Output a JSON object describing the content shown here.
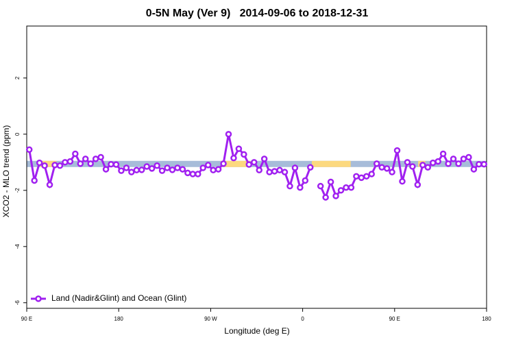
{
  "chart_data": {
    "type": "line",
    "title": "0-5N May (Ver 9)   2014-09-06 to 2018-12-31",
    "x_label": "Longitude (deg E)",
    "y_label": "XCO2 - MLO trend (ppm)",
    "xlim": [
      90,
      540
    ],
    "ylim": [
      -6.2,
      3.85
    ],
    "xticks": [
      {
        "value": 90,
        "label": "90 E"
      },
      180,
      {
        "value": 270,
        "label": "90 W"
      },
      {
        "value": 360,
        "label": "0"
      },
      {
        "value": 450,
        "label": "90 E"
      },
      {
        "value": 540,
        "label": "180"
      }
    ],
    "yticks": [
      -6,
      -4,
      -2,
      0,
      2
    ],
    "legend": "bottom-left",
    "band": {
      "range": [
        -1.17,
        -0.95
      ],
      "color": "#a7bcd9",
      "highlight_color": "#fcd97f",
      "highlights": [
        [
          103,
          119
        ],
        [
          280,
          309
        ],
        [
          369,
          407
        ],
        [
          473,
          480
        ]
      ]
    },
    "x": [
      92.5,
      97.5,
      102.5,
      107.5,
      112.5,
      117.5,
      122.5,
      127.5,
      132.5,
      137.5,
      142.5,
      147.5,
      152.5,
      157.5,
      162.5,
      167.5,
      172.5,
      177.5,
      182.5,
      187.5,
      192.5,
      197.5,
      202.5,
      207.5,
      212.5,
      217.5,
      222.5,
      227.5,
      232.5,
      237.5,
      242.5,
      247.5,
      252.5,
      257.5,
      262.5,
      267.5,
      272.5,
      277.5,
      282.5,
      287.5,
      292.5,
      297.5,
      302.5,
      307.5,
      312.5,
      317.5,
      322.5,
      327.5,
      332.5,
      337.5,
      342.5,
      347.5,
      352.5,
      357.5,
      362.5,
      367.5,
      372.5,
      377.5,
      382.5,
      387.5,
      392.5,
      397.5,
      402.5,
      407.5,
      412.5,
      417.5,
      422.5,
      427.5,
      432.5,
      437.5,
      442.5,
      447.5,
      452.5,
      457.5,
      462.5,
      467.5,
      472.5,
      477.5,
      482.5,
      487.5,
      492.5,
      497.5,
      502.5,
      507.5,
      512.5,
      517.5,
      522.5,
      527.5,
      532.5,
      537.5
    ],
    "series": [
      {
        "name": "Land (Nadir&Glint) and Ocean (Glint)",
        "color": "#a020f0",
        "values": [
          -0.55,
          -1.65,
          -1.02,
          -1.12,
          -1.8,
          -1.1,
          -1.12,
          -1.0,
          -0.97,
          -0.7,
          -1.05,
          -0.88,
          -1.05,
          -0.88,
          -0.82,
          -1.25,
          -1.07,
          -1.08,
          -1.3,
          -1.2,
          -1.35,
          -1.28,
          -1.27,
          -1.15,
          -1.22,
          -1.12,
          -1.3,
          -1.2,
          -1.27,
          -1.2,
          -1.25,
          -1.38,
          -1.42,
          -1.42,
          -1.2,
          -1.1,
          -1.28,
          -1.25,
          -1.05,
          0.0,
          -0.85,
          -0.52,
          -0.72,
          -1.08,
          -1.0,
          -1.28,
          -0.88,
          -1.35,
          -1.32,
          -1.28,
          -1.35,
          -1.85,
          -1.2,
          -1.9,
          -1.65,
          -1.18,
          null,
          -1.85,
          -2.25,
          -1.7,
          -2.2,
          -2.0,
          -1.9,
          -1.9,
          -1.5,
          -1.55,
          -1.5,
          -1.42,
          -1.05,
          -1.18,
          -1.22,
          -1.35,
          -0.58,
          -1.68,
          -1.0,
          -1.15,
          -1.8,
          -1.1,
          -1.18,
          -1.02,
          -0.97,
          -0.7,
          -1.05,
          -0.88,
          -1.05,
          -0.88,
          -0.82,
          -1.25,
          -1.07,
          -1.07
        ]
      }
    ]
  }
}
